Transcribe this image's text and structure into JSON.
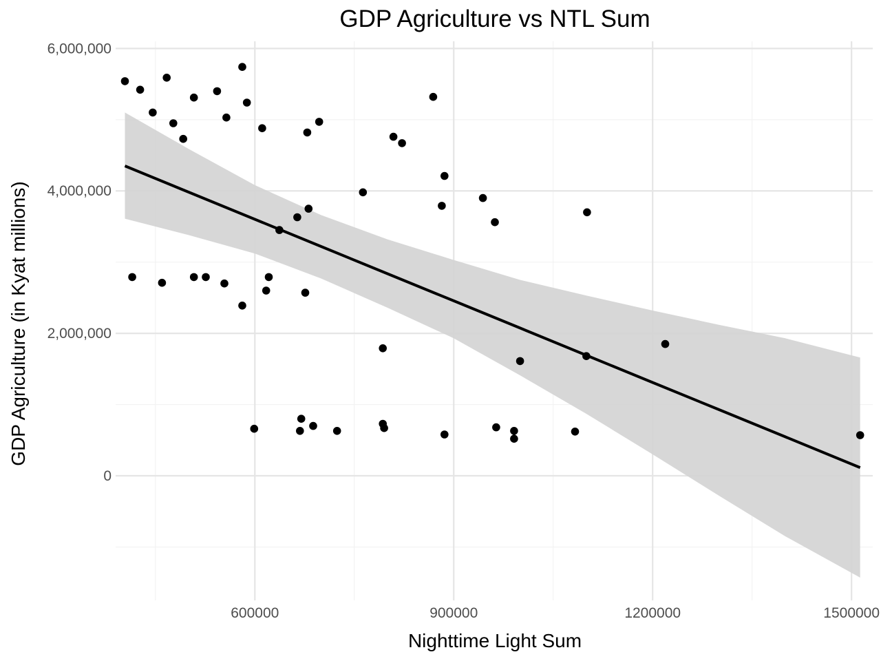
{
  "chart_data": {
    "type": "scatter",
    "title": "GDP Agriculture vs NTL Sum",
    "xlabel": "Nighttime Light Sum",
    "ylabel": "GDP Agriculture (in Kyat millions)",
    "xlim": [
      390000,
      1532000
    ],
    "ylim": [
      -1750000,
      6100000
    ],
    "x_ticks": [
      600000,
      900000,
      1200000,
      1500000
    ],
    "x_tick_labels": [
      "600000",
      "900000",
      "1200000",
      "1500000"
    ],
    "y_ticks": [
      0,
      2000000,
      4000000,
      6000000
    ],
    "y_tick_labels": [
      "0",
      "2,000,000",
      "4,000,000",
      "6,000,000"
    ],
    "grid": true,
    "colors": {
      "points": "#000000",
      "line": "#000000",
      "band": "#d3d3d3"
    },
    "points": [
      {
        "x": 404000,
        "y": 5540000
      },
      {
        "x": 427000,
        "y": 5420000
      },
      {
        "x": 446000,
        "y": 5100000
      },
      {
        "x": 467000,
        "y": 5590000
      },
      {
        "x": 477000,
        "y": 4950000
      },
      {
        "x": 492000,
        "y": 4730000
      },
      {
        "x": 508000,
        "y": 5310000
      },
      {
        "x": 543000,
        "y": 5400000
      },
      {
        "x": 557000,
        "y": 5030000
      },
      {
        "x": 581000,
        "y": 5740000
      },
      {
        "x": 588000,
        "y": 5240000
      },
      {
        "x": 611000,
        "y": 4880000
      },
      {
        "x": 679000,
        "y": 4820000
      },
      {
        "x": 697000,
        "y": 4970000
      },
      {
        "x": 869000,
        "y": 5320000
      },
      {
        "x": 809000,
        "y": 4760000
      },
      {
        "x": 822000,
        "y": 4670000
      },
      {
        "x": 886000,
        "y": 4210000
      },
      {
        "x": 763000,
        "y": 3980000
      },
      {
        "x": 944000,
        "y": 3900000
      },
      {
        "x": 882000,
        "y": 3790000
      },
      {
        "x": 681000,
        "y": 3750000
      },
      {
        "x": 664000,
        "y": 3630000
      },
      {
        "x": 962000,
        "y": 3560000
      },
      {
        "x": 1101000,
        "y": 3700000
      },
      {
        "x": 637000,
        "y": 3450000
      },
      {
        "x": 415000,
        "y": 2790000
      },
      {
        "x": 460000,
        "y": 2710000
      },
      {
        "x": 508000,
        "y": 2790000
      },
      {
        "x": 526000,
        "y": 2790000
      },
      {
        "x": 554000,
        "y": 2700000
      },
      {
        "x": 621000,
        "y": 2790000
      },
      {
        "x": 617000,
        "y": 2600000
      },
      {
        "x": 676000,
        "y": 2570000
      },
      {
        "x": 581000,
        "y": 2390000
      },
      {
        "x": 793000,
        "y": 1790000
      },
      {
        "x": 1219000,
        "y": 1850000
      },
      {
        "x": 1100000,
        "y": 1680000
      },
      {
        "x": 1000000,
        "y": 1610000
      },
      {
        "x": 599000,
        "y": 660000
      },
      {
        "x": 670000,
        "y": 800000
      },
      {
        "x": 668000,
        "y": 630000
      },
      {
        "x": 688000,
        "y": 700000
      },
      {
        "x": 724000,
        "y": 630000
      },
      {
        "x": 793000,
        "y": 730000
      },
      {
        "x": 795000,
        "y": 670000
      },
      {
        "x": 886000,
        "y": 580000
      },
      {
        "x": 964000,
        "y": 680000
      },
      {
        "x": 991000,
        "y": 630000
      },
      {
        "x": 991000,
        "y": 520000
      },
      {
        "x": 1083000,
        "y": 620000
      },
      {
        "x": 1513000,
        "y": 570000
      }
    ],
    "regression": {
      "x": [
        404000,
        500000,
        600000,
        700000,
        800000,
        900000,
        1000000,
        1100000,
        1200000,
        1300000,
        1400000,
        1513000
      ],
      "fit": [
        4350000,
        3983000,
        3601000,
        3219000,
        2837000,
        2456000,
        2074000,
        1692000,
        1310000,
        929000,
        547000,
        115000
      ],
      "lower": [
        3610000,
        3380000,
        3120000,
        2770000,
        2360000,
        1930000,
        1410000,
        870000,
        300000,
        -280000,
        -850000,
        -1430000
      ],
      "upper": [
        5100000,
        4590000,
        4080000,
        3660000,
        3320000,
        3030000,
        2750000,
        2530000,
        2320000,
        2120000,
        1930000,
        1660000
      ]
    }
  }
}
